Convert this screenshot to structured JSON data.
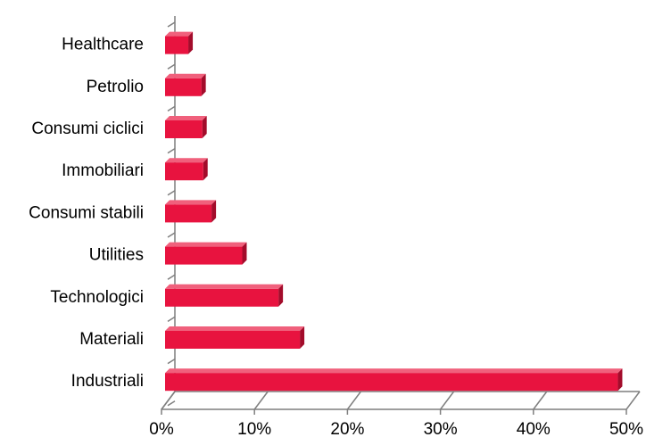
{
  "chart_data": {
    "type": "bar",
    "orientation": "horizontal",
    "style": "3d",
    "categories": [
      "Healthcare",
      "Petrolio",
      "Consumi ciclici",
      "Immobiliari",
      "Consumi stabili",
      "Utilities",
      "Technologici",
      "Materiali",
      "Industriali"
    ],
    "values": [
      2.5,
      3.9,
      4.0,
      4.1,
      5.0,
      8.3,
      12.2,
      14.5,
      48.7
    ],
    "value_unit": "%",
    "xlim": [
      0,
      50
    ],
    "x_ticks": [
      "0%",
      "10%",
      "20%",
      "30%",
      "40%",
      "50%"
    ],
    "x_tick_values": [
      0,
      10,
      20,
      30,
      40,
      50
    ],
    "grid": false,
    "legend": "none",
    "colors": {
      "bar_front": "#e8133f",
      "bar_top": "#f0607c",
      "bar_side": "#a30c2b",
      "axis": "#7f7f7f"
    }
  }
}
